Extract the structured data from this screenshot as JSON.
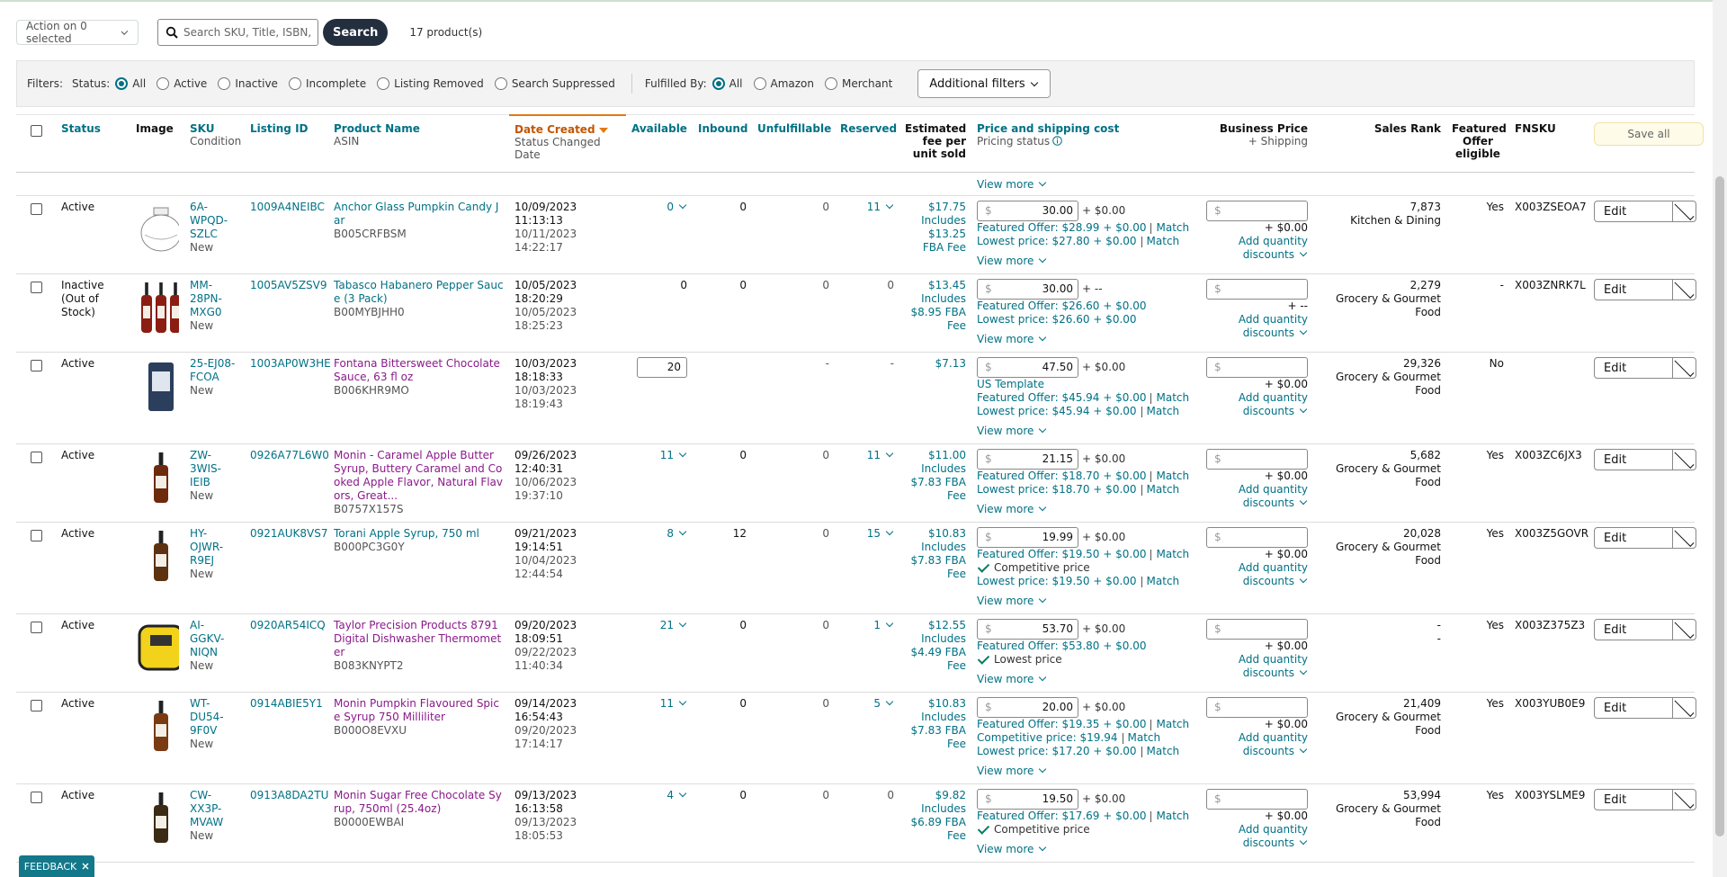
{
  "toolbar": {
    "action": "Action on 0 selected",
    "search_placeholder": "Search SKU, Title, ISBN,",
    "search_button": "Search",
    "product_count": "17 product(s)"
  },
  "filters": {
    "label": "Filters:",
    "status_label": "Status:",
    "status_options": [
      "All",
      "Active",
      "Inactive",
      "Incomplete",
      "Listing Removed",
      "Search Suppressed"
    ],
    "status_selected": 0,
    "fulfilled_label": "Fulfilled By:",
    "fulfilled_options": [
      "All",
      "Amazon",
      "Merchant"
    ],
    "fulfilled_selected": 0,
    "additional": "Additional filters"
  },
  "table": {
    "headers": [
      {
        "title": "Status",
        "link": true
      },
      {
        "title": "Image"
      },
      {
        "title": "SKU",
        "sub": "Condition",
        "link": true
      },
      {
        "title": "Listing ID",
        "link": true
      },
      {
        "title": "Product Name",
        "sub": "ASIN",
        "link": true
      },
      {
        "title": "Date Created",
        "sub": "Status Changed Date",
        "link": true,
        "sorted": true
      },
      {
        "title": "Available",
        "link": true
      },
      {
        "title": "Inbound",
        "link": true
      },
      {
        "title": "Unfulfillable",
        "link": true
      },
      {
        "title": "Reserved",
        "link": true
      },
      {
        "title": "Estimated fee per unit sold"
      },
      {
        "title": "Price and shipping cost",
        "sub": "Pricing status",
        "link": true,
        "info": true
      },
      {
        "title": "Business Price",
        "sub": "+ Shipping"
      },
      {
        "title": "Sales Rank"
      },
      {
        "title": "Featured Offer eligible"
      },
      {
        "title": "FNSKU"
      }
    ],
    "save_all": "Save all",
    "view_more": "View more",
    "edit": "Edit",
    "input_prefix": "$",
    "match_label": "Match",
    "quantity_discounts": "Add quantity discounts",
    "rows": [
      {
        "status": "Active",
        "sku": "6A-WPQD-SZLC",
        "condition": "New",
        "listing_id": "1009A4NEIBC",
        "name": "Anchor Glass Pumpkin Candy Jar",
        "visited": false,
        "asin": "B005CRFBSM",
        "created": "10/09/2023 11:13:13",
        "changed": "10/11/2023 14:22:17",
        "available": "0",
        "available_menu": true,
        "inbound": "0",
        "unfulfillable": "0",
        "reserved": "11",
        "reserved_menu": true,
        "fee": "$17.75",
        "fee_detail": "Includes $13.25 FBA Fee",
        "price": "30.00",
        "shipping": "+ $0.00",
        "offers": [
          {
            "text": "Featured Offer: $28.99 + $0.00",
            "match": true
          },
          {
            "text": "Lowest price: $27.80 + $0.00",
            "match": true
          }
        ],
        "business_shipping": "+ $0.00",
        "sales_rank": "7,873",
        "category": "Kitchen & Dining",
        "featured": "Yes",
        "fnsku": "X003ZSEOA7"
      },
      {
        "status": "Inactive (Out of Stock)",
        "sku": "MM-28PN-MXG0",
        "condition": "New",
        "listing_id": "1005AV5ZSV9",
        "name": "Tabasco Habanero Pepper Sauce (3 Pack)",
        "visited": false,
        "asin": "B00MYBJHH0",
        "created": "10/05/2023 18:20:29",
        "changed": "10/05/2023 18:25:23",
        "available": "0",
        "available_menu": false,
        "inbound": "0",
        "unfulfillable": "0",
        "reserved": "0",
        "reserved_menu": false,
        "fee": "$13.45",
        "fee_detail": "Includes $8.95 FBA Fee",
        "price": "30.00",
        "shipping": "+ --",
        "offers": [
          {
            "text": "Featured Offer: $26.60 + $0.00"
          },
          {
            "text": "Lowest price: $26.60 + $0.00"
          }
        ],
        "business_shipping": "+ --",
        "sales_rank": "2,279",
        "category": "Grocery & Gourmet Food",
        "featured": "-",
        "fnsku": "X003ZNRK7L"
      },
      {
        "status": "Active",
        "sku": "25-EJ08-FCOA",
        "condition": "New",
        "listing_id": "1003AP0W3HE",
        "name": "Fontana Bittersweet Chocolate Sauce, 63 fl oz",
        "visited": true,
        "asin": "B006KHR9MO",
        "created": "10/03/2023 18:18:33",
        "changed": "10/03/2023 18:19:43",
        "available": "20",
        "available_input": true,
        "unfulfillable": "-",
        "reserved": "-",
        "reserved_menu": false,
        "fee": "$7.13",
        "price": "47.50",
        "shipping": "+ $0.00",
        "offers": [
          {
            "text": "US Template"
          },
          {
            "text": "Featured Offer: $45.94 + $0.00",
            "match": true
          },
          {
            "text": "Lowest price: $45.94 + $0.00",
            "match": true
          }
        ],
        "business_shipping": "+ $0.00",
        "sales_rank": "29,326",
        "category": "Grocery & Gourmet Food",
        "featured": "No"
      },
      {
        "status": "Active",
        "sku": "ZW-3WIS-IEIB",
        "condition": "New",
        "listing_id": "0926A77L6W0",
        "name": "Monin - Caramel Apple Butter Syrup, Buttery Caramel and Cooked Apple Flavor, Natural Flavors, Great...",
        "visited": true,
        "asin": "B0757X157S",
        "created": "09/26/2023 12:40:31",
        "changed": "10/06/2023 19:37:10",
        "available": "11",
        "available_menu": true,
        "inbound": "0",
        "unfulfillable": "0",
        "reserved": "11",
        "reserved_menu": true,
        "fee": "$11.00",
        "fee_detail": "Includes $7.83 FBA Fee",
        "price": "21.15",
        "shipping": "+ $0.00",
        "offers": [
          {
            "text": "Featured Offer: $18.70 + $0.00",
            "match": true
          },
          {
            "text": "Lowest price: $18.70 + $0.00",
            "match": true
          }
        ],
        "business_shipping": "+ $0.00",
        "sales_rank": "5,682",
        "category": "Grocery & Gourmet Food",
        "featured": "Yes",
        "fnsku": "X003ZC6JX3"
      },
      {
        "status": "Active",
        "sku": "HY-OJWR-R9EJ",
        "condition": "New",
        "listing_id": "0921AUK8VS7",
        "name": "Torani Apple Syrup, 750 ml",
        "visited": false,
        "asin": "B000PC3G0Y",
        "created": "09/21/2023 19:14:51",
        "changed": "10/04/2023 12:44:54",
        "available": "8",
        "available_menu": true,
        "inbound": "12",
        "unfulfillable": "0",
        "reserved": "15",
        "reserved_menu": true,
        "fee": "$10.83",
        "fee_detail": "Includes $7.83 FBA Fee",
        "price": "19.99",
        "shipping": "+ $0.00",
        "offers": [
          {
            "text": "Featured Offer: $19.50 + $0.00",
            "match": true
          },
          {
            "text": "Competitive price",
            "check": true
          },
          {
            "text": "Lowest price: $19.50 + $0.00",
            "match": true
          }
        ],
        "business_shipping": "+ $0.00",
        "sales_rank": "20,028",
        "category": "Grocery & Gourmet Food",
        "featured": "Yes",
        "fnsku": "X003Z5GOVR"
      },
      {
        "status": "Active",
        "sku": "AI-GGKV-NIQN",
        "condition": "New",
        "listing_id": "0920AR54ICQ",
        "name": "Taylor Precision Products 8791 Digital Dishwasher Thermometer",
        "visited": true,
        "asin": "B083KNYPT2",
        "created": "09/20/2023 18:09:51",
        "changed": "09/22/2023 11:40:34",
        "available": "21",
        "available_menu": true,
        "inbound": "0",
        "unfulfillable": "0",
        "reserved": "1",
        "reserved_menu": true,
        "fee": "$12.55",
        "fee_detail": "Includes $4.49 FBA Fee",
        "price": "53.70",
        "shipping": "+ $0.00",
        "offers": [
          {
            "text": "Featured Offer: $53.80 + $0.00"
          },
          {
            "text": "Lowest price",
            "check": true
          }
        ],
        "business_shipping": "+ $0.00",
        "sales_rank": "-",
        "category": "-",
        "featured": "Yes",
        "fnsku": "X003Z375Z3"
      },
      {
        "status": "Active",
        "sku": "WT-DU54-9F0V",
        "condition": "New",
        "listing_id": "0914ABIE5Y1",
        "name": "Monin Pumpkin Flavoured Spice Syrup 750 Milliliter",
        "visited": true,
        "asin": "B000O8EVXU",
        "created": "09/14/2023 16:54:43",
        "changed": "09/20/2023 17:14:17",
        "available": "11",
        "available_menu": true,
        "inbound": "0",
        "unfulfillable": "0",
        "reserved": "5",
        "reserved_menu": true,
        "fee": "$10.83",
        "fee_detail": "Includes $7.83 FBA Fee",
        "price": "20.00",
        "shipping": "+ $0.00",
        "offers": [
          {
            "text": "Featured Offer: $19.35 + $0.00",
            "match": true
          },
          {
            "text": "Competitive price: $19.94",
            "match": true
          },
          {
            "text": "Lowest price: $17.20 + $0.00",
            "match": true
          }
        ],
        "business_shipping": "+ $0.00",
        "sales_rank": "21,409",
        "category": "Grocery & Gourmet Food",
        "featured": "Yes",
        "fnsku": "X003YUB0E9"
      },
      {
        "status": "Active",
        "sku": "CW-XX3P-MVAW",
        "condition": "New",
        "listing_id": "0913A8DA2TU",
        "name": "Monin Sugar Free Chocolate Syrup, 750ml (25.4oz)",
        "visited": true,
        "asin": "B0000EWBAI",
        "created": "09/13/2023 16:13:58",
        "changed": "09/13/2023 18:05:53",
        "available": "4",
        "available_menu": true,
        "inbound": "0",
        "unfulfillable": "0",
        "reserved": "0",
        "reserved_menu": false,
        "fee": "$9.82",
        "fee_detail": "Includes $6.89 FBA Fee",
        "price": "19.50",
        "shipping": "+ $0.00",
        "offers": [
          {
            "text": "Featured Offer: $17.69 + $0.00",
            "match": true
          },
          {
            "text": "Competitive price",
            "check": true
          }
        ],
        "business_shipping": "+ $0.00",
        "sales_rank": "53,994",
        "category": "Grocery & Gourmet Food",
        "featured": "Yes",
        "fnsku": "X003YSLME9"
      }
    ]
  },
  "feedback": "FEEDBACK"
}
